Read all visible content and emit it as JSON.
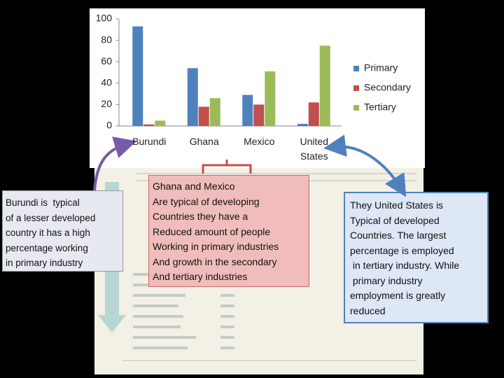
{
  "chart_data": {
    "type": "bar",
    "categories": [
      "Burundi",
      "Ghana",
      "Mexico",
      "United States"
    ],
    "series": [
      {
        "name": "Primary",
        "color": "#4f81bd",
        "values": [
          93,
          54,
          29,
          2
        ]
      },
      {
        "name": "Secondary",
        "color": "#c0504d",
        "values": [
          1.5,
          18,
          20,
          22
        ]
      },
      {
        "name": "Tertiary",
        "color": "#9bbb59",
        "values": [
          5,
          26,
          51,
          75
        ]
      }
    ],
    "ylim": [
      0,
      100
    ],
    "yticks": [
      0,
      20,
      40,
      60,
      80,
      100
    ],
    "grid": false,
    "legend": "right"
  },
  "annotations": [
    {
      "lines": [
        "Burundi is  typical",
        "of a lesser developed",
        "country it has a high",
        "percentage working",
        "in primary industry"
      ]
    },
    {
      "lines": [
        "Ghana and Mexico",
        "Are typical of developing",
        "Countries they have a",
        "Reduced amount of people",
        "Working in primary industries",
        "And growth in the secondary",
        "And tertiary industries"
      ]
    },
    {
      "lines": [
        "They United States is",
        "Typical of developed",
        "Countries. The largest",
        "percentage is employed",
        " in tertiary industry. While",
        " primary industry",
        "employment is greatly",
        "reduced"
      ]
    }
  ]
}
